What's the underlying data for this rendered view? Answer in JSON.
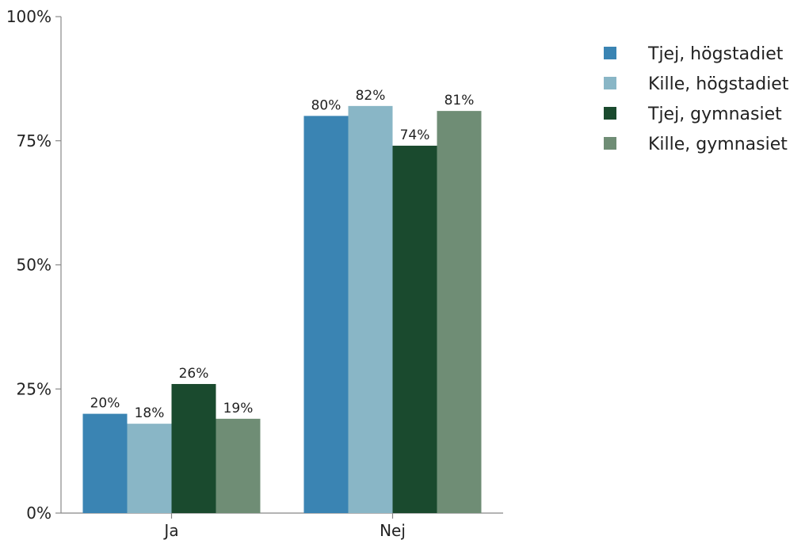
{
  "chart_data": {
    "type": "bar",
    "categories": [
      "Ja",
      "Nej"
    ],
    "series": [
      {
        "name": "Tjej, högstadiet",
        "color": "#3a84b3",
        "values": [
          20,
          80
        ],
        "labels": [
          "20%",
          "80%"
        ]
      },
      {
        "name": "Kille, högstadiet",
        "color": "#89b6c6",
        "values": [
          18,
          82
        ],
        "labels": [
          "18%",
          "82%"
        ]
      },
      {
        "name": "Tjej, gymnasiet",
        "color": "#1a4a2e",
        "values": [
          26,
          74
        ],
        "labels": [
          "26%",
          "74%"
        ]
      },
      {
        "name": "Kille, gymnasiet",
        "color": "#6f8d75",
        "values": [
          19,
          81
        ],
        "labels": [
          "19%",
          "81%"
        ]
      }
    ],
    "y_ticks": [
      0,
      25,
      50,
      75,
      100
    ],
    "y_tick_labels": [
      "0%",
      "25%",
      "50%",
      "75%",
      "100%"
    ],
    "ylim": [
      0,
      100
    ],
    "grid": false,
    "legend_position": "top-right"
  }
}
